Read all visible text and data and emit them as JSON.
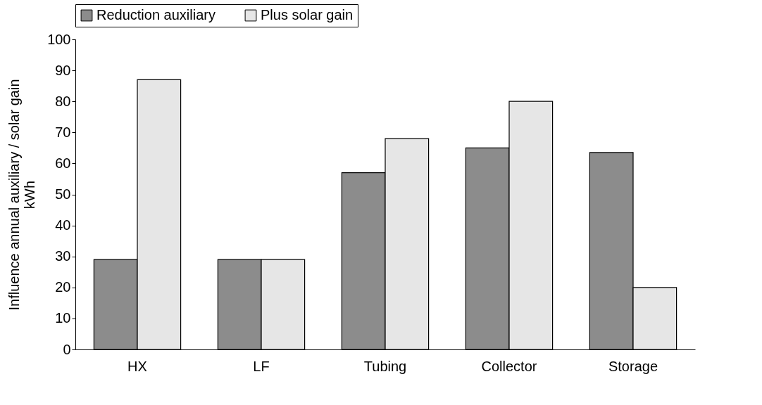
{
  "chart_data": {
    "type": "bar",
    "ylabel": "Influence annual auxiliary / solar gain\nkWh",
    "categories": [
      "HX",
      "LF",
      "Tubing",
      "Collector",
      "Storage"
    ],
    "series": [
      {
        "name": "Reduction auxiliary",
        "color": "#8c8c8c",
        "values": [
          29,
          29,
          57,
          65,
          63.5
        ]
      },
      {
        "name": "Plus solar gain",
        "color": "#e6e6e6",
        "values": [
          87,
          29,
          68,
          80,
          20
        ]
      }
    ],
    "ylim": [
      0,
      100
    ],
    "yticks": [
      0,
      10,
      20,
      30,
      40,
      50,
      60,
      70,
      80,
      90,
      100
    ],
    "grid": false,
    "legend": "top"
  }
}
